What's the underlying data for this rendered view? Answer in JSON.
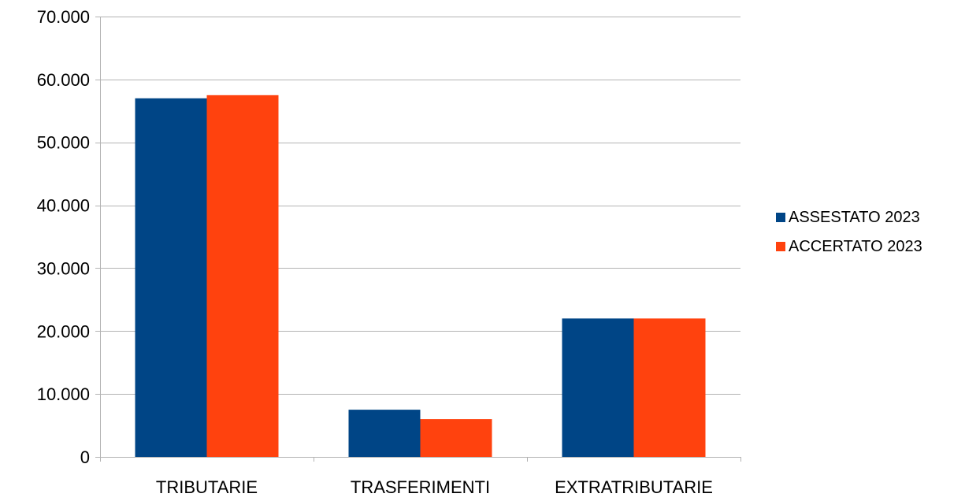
{
  "chart_data": {
    "type": "bar",
    "title": "",
    "xlabel": "",
    "ylabel": "",
    "categories": [
      "TRIBUTARIE",
      "TRASFERIMENTI",
      "EXTRATRIBUTARIE"
    ],
    "series": [
      {
        "name": "ASSESTATO 2023",
        "color": "#004586",
        "values": [
          57000,
          7500,
          22000
        ]
      },
      {
        "name": "ACCERTATO 2023",
        "color": "#ff420e",
        "values": [
          57500,
          6000,
          22000
        ]
      }
    ],
    "ylim": [
      0,
      70000
    ],
    "yticks": [
      0,
      10000,
      20000,
      30000,
      40000,
      50000,
      60000,
      70000
    ],
    "ytick_labels": [
      "0",
      "10.000",
      "20.000",
      "30.000",
      "40.000",
      "50.000",
      "60.000",
      "70.000"
    ],
    "grid": true,
    "legend_position": "right"
  }
}
